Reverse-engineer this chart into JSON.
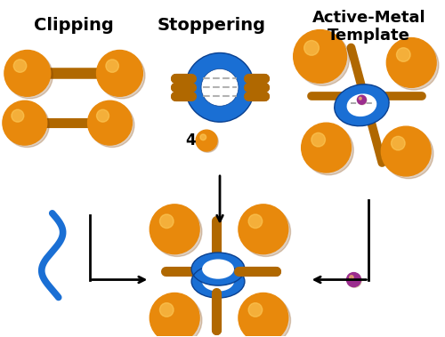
{
  "background_color": "#ffffff",
  "orange_color": "#E8890C",
  "orange_dark": "#B06800",
  "blue_color": "#1A6FD4",
  "purple_color": "#9B2D8E",
  "black_color": "#000000",
  "label_clipping": "Clipping",
  "label_stoppering": "Stoppering",
  "label_active_metal": "Active-Metal\nTemplate",
  "label_4": "4",
  "figsize": [
    5.0,
    3.79
  ],
  "dpi": 100
}
